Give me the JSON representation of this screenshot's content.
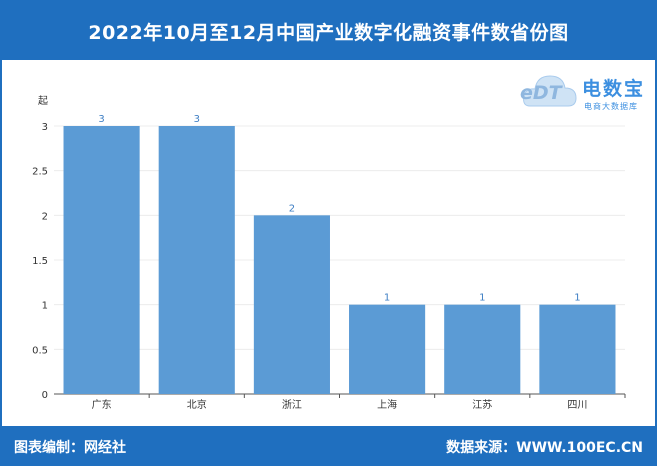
{
  "header": {
    "title": "2022年10月至12月中国产业数字化融资事件数省份图"
  },
  "footer": {
    "left": "图表编制：网经社",
    "right": "数据来源：WWW.100EC.CN"
  },
  "logo": {
    "title": "电数宝",
    "subtitle": "电商大数据库",
    "mark": "eDT"
  },
  "colors": {
    "header": "#1f6fbf",
    "bar": "#5b9bd5",
    "label": "#3f7fc4"
  },
  "chart_data": {
    "type": "bar",
    "y_unit": "起",
    "categories": [
      "广东",
      "北京",
      "浙江",
      "上海",
      "江苏",
      "四川"
    ],
    "values": [
      3,
      3,
      2,
      1,
      1,
      1
    ],
    "ylim": [
      0,
      3
    ],
    "yticks": [
      0,
      0.5,
      1,
      1.5,
      2,
      2.5,
      3
    ],
    "ytick_labels": [
      "0",
      "0.5",
      "1",
      "1.5",
      "2",
      "2.5",
      "3"
    ],
    "data_labels": true,
    "grid": true
  }
}
